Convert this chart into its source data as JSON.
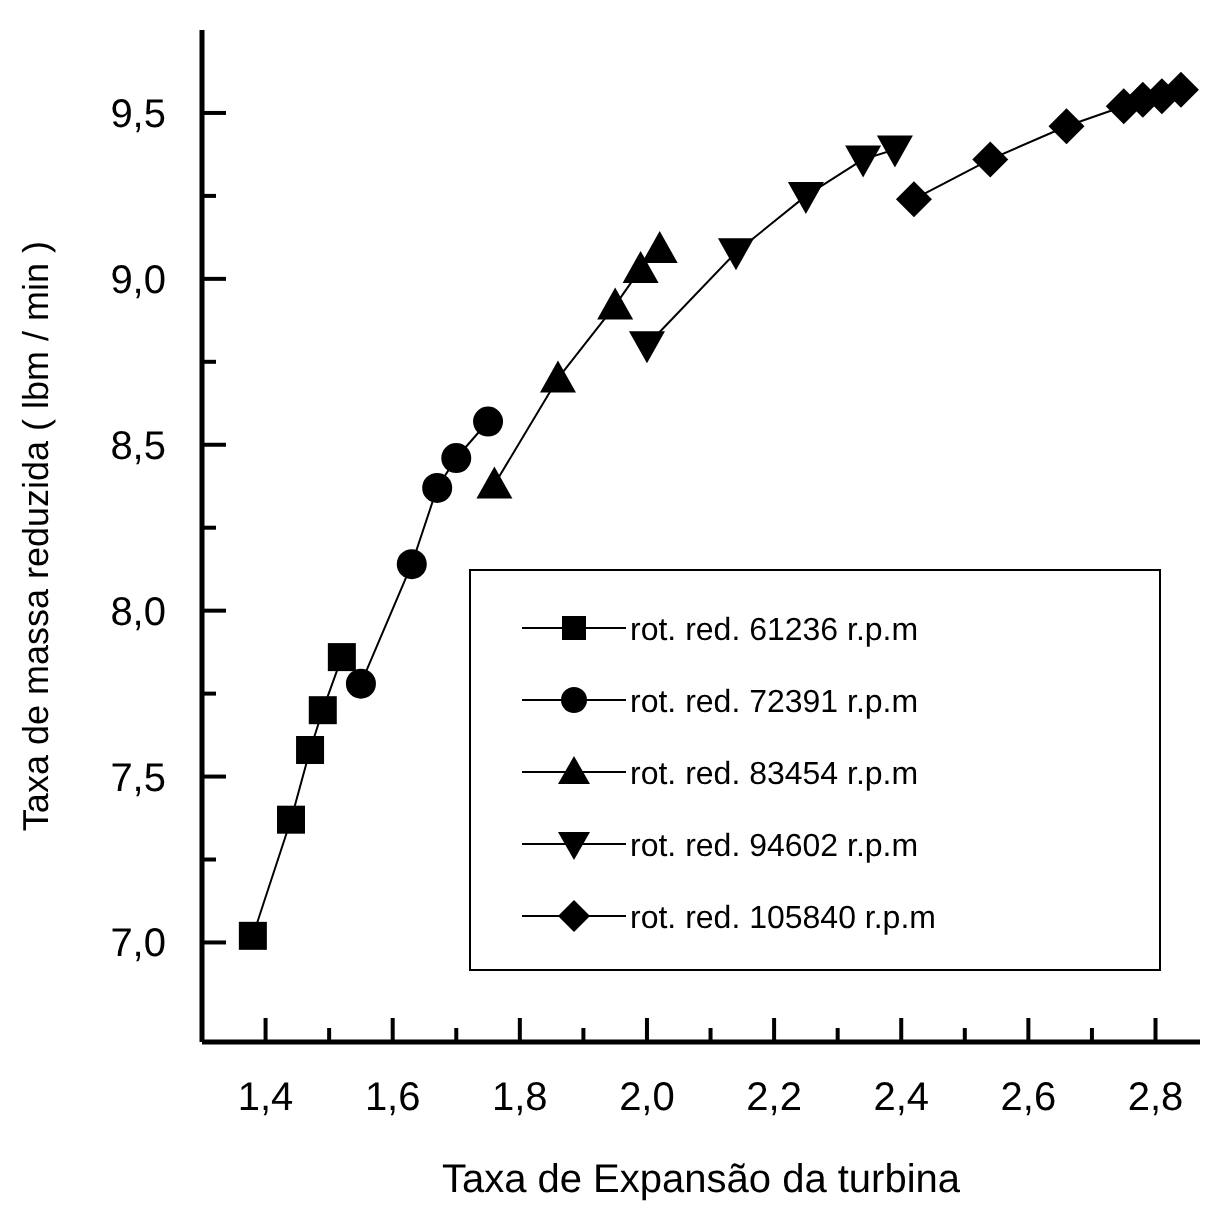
{
  "chart_data": {
    "type": "line",
    "xlabel": "Taxa de Expansão da turbina",
    "ylabel": "Taxa de massa reduzida ( lbm / min )",
    "xlim": [
      1.3,
      2.87
    ],
    "ylim": [
      6.7,
      9.75
    ],
    "xticks": [
      {
        "value": 1.4,
        "label": "1,4"
      },
      {
        "value": 1.6,
        "label": "1,6"
      },
      {
        "value": 1.8,
        "label": "1,8"
      },
      {
        "value": 2.0,
        "label": "2,0"
      },
      {
        "value": 2.2,
        "label": "2,2"
      },
      {
        "value": 2.4,
        "label": "2,4"
      },
      {
        "value": 2.6,
        "label": "2,6"
      },
      {
        "value": 2.8,
        "label": "2,8"
      }
    ],
    "yticks": [
      {
        "value": 7.0,
        "label": "7,0"
      },
      {
        "value": 7.5,
        "label": "7,5"
      },
      {
        "value": 8.0,
        "label": "8,0"
      },
      {
        "value": 8.5,
        "label": "8,5"
      },
      {
        "value": 9.0,
        "label": "9,0"
      },
      {
        "value": 9.5,
        "label": "9,5"
      }
    ],
    "legend": "bottom right",
    "grid": false,
    "line_style": "solid",
    "series": [
      {
        "name": "rot. red. 61236 r.p.m",
        "color": "#000000",
        "marker": "square",
        "x": [
          1.38,
          1.44,
          1.47,
          1.49,
          1.52
        ],
        "values": [
          7.02,
          7.37,
          7.58,
          7.7,
          7.86
        ]
      },
      {
        "name": "rot. red. 72391 r.p.m",
        "color": "#000000",
        "marker": "circle",
        "x": [
          1.55,
          1.63,
          1.67,
          1.7,
          1.75
        ],
        "values": [
          7.78,
          8.14,
          8.37,
          8.46,
          8.57
        ]
      },
      {
        "name": "rot. red. 83454 r.p.m",
        "color": "#000000",
        "marker": "triangle",
        "x": [
          1.76,
          1.86,
          1.95,
          1.99,
          2.02
        ],
        "values": [
          8.38,
          8.7,
          8.92,
          9.03,
          9.09
        ]
      },
      {
        "name": "rot. red. 94602 r.p.m",
        "color": "#000000",
        "marker": "triangle-down",
        "x": [
          2.0,
          2.14,
          2.25,
          2.34,
          2.39
        ],
        "values": [
          8.8,
          9.08,
          9.25,
          9.36,
          9.39
        ]
      },
      {
        "name": "rot. red. 105840 r.p.m",
        "color": "#000000",
        "marker": "diamond",
        "x": [
          2.42,
          2.54,
          2.66,
          2.75,
          2.78,
          2.81,
          2.84
        ],
        "values": [
          9.24,
          9.36,
          9.46,
          9.52,
          9.54,
          9.55,
          9.57
        ]
      }
    ]
  }
}
